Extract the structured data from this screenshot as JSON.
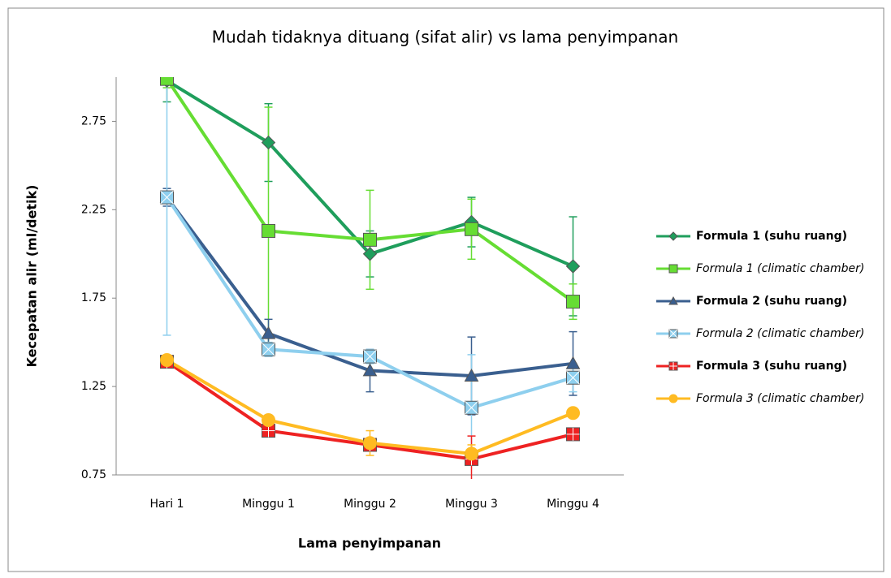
{
  "chart_data": {
    "type": "line",
    "title": "Mudah tidaknya dituang (sifat alir) vs lama penyimpanan",
    "x_label": "Lama penyimpanan",
    "y_label": "Kecepatan alir (ml/detik)",
    "categories": [
      "Hari 1",
      "Minggu 1",
      "Minggu 2",
      "Minggu 3",
      "Minggu 4"
    ],
    "ylim": [
      0.75,
      3.0
    ],
    "yticks": [
      0.75,
      1.25,
      1.75,
      2.25,
      2.75
    ],
    "legend": "right",
    "series": [
      {
        "name": "Formula 1 (suhu ruang)",
        "color": "#1f9e5c",
        "marker": "diamond",
        "italic": false,
        "values": [
          2.98,
          2.63,
          2.0,
          2.18,
          1.93
        ],
        "errors": [
          0.12,
          0.22,
          0.13,
          0.14,
          0.28
        ]
      },
      {
        "name": "Formula 1 (climatic chamber)",
        "color": "#66dd33",
        "marker": "square",
        "italic": true,
        "values": [
          2.99,
          2.13,
          2.08,
          2.14,
          1.73
        ],
        "errors": [
          0.05,
          0.7,
          0.28,
          0.17,
          0.1
        ]
      },
      {
        "name": "Formula 2 (suhu ruang)",
        "color": "#3a5f8f",
        "marker": "triangle",
        "italic": false,
        "values": [
          2.32,
          1.55,
          1.34,
          1.31,
          1.38
        ],
        "errors": [
          0.05,
          0.08,
          0.12,
          0.22,
          0.18
        ]
      },
      {
        "name": "Formula 2 (climatic chamber)",
        "color": "#8ecfee",
        "marker": "xsquare",
        "italic": true,
        "values": [
          2.32,
          1.46,
          1.42,
          1.13,
          1.3
        ],
        "errors": [
          0.78,
          0.04,
          0.04,
          0.3,
          0.08
        ]
      },
      {
        "name": "Formula 3 (suhu ruang)",
        "color": "#ee2222",
        "marker": "plussquare",
        "italic": false,
        "values": [
          1.39,
          1.0,
          0.92,
          0.84,
          0.98
        ],
        "errors": [
          0.02,
          0.03,
          0.03,
          0.13,
          0.02
        ]
      },
      {
        "name": "Formula 3 (climatic chamber)",
        "color": "#ffbb22",
        "marker": "circle",
        "italic": true,
        "values": [
          1.4,
          1.06,
          0.93,
          0.87,
          1.1
        ],
        "errors": [
          0.02,
          0.02,
          0.07,
          0.05,
          0.02
        ]
      }
    ]
  }
}
